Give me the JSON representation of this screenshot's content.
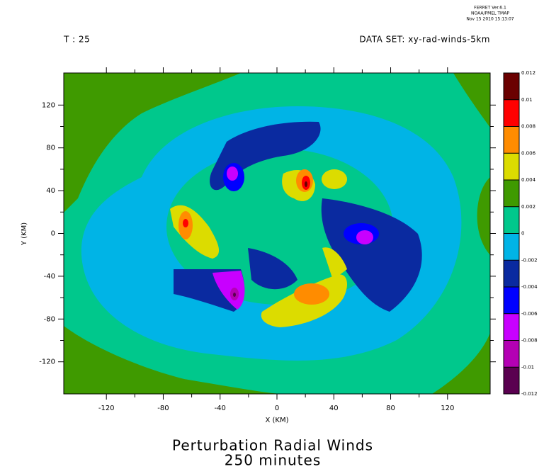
{
  "chart_data": {
    "type": "contour",
    "title": "Perturbation Radial Winds",
    "subtitle": "250 minutes",
    "time_label": "T : 25",
    "dataset_label": "DATA SET: xy-rad-winds-5km",
    "stamp": [
      "FERRET Ver.6.1",
      "NOAA/PMEL TMAP",
      "Nov 15 2010 15:13:07"
    ],
    "x_label": "X (KM)",
    "y_label": "Y (KM)",
    "xlim": [
      -150,
      150
    ],
    "ylim": [
      -150,
      150
    ],
    "xticks": [
      -120,
      -80,
      -40,
      0,
      40,
      80,
      120
    ],
    "yticks": [
      -120,
      -80,
      -40,
      0,
      40,
      80,
      120
    ],
    "levels": [
      -0.012,
      -0.01,
      -0.008,
      -0.006,
      -0.004,
      -0.002,
      0,
      0.002,
      0.004,
      0.006,
      0.008,
      0.01,
      0.012
    ],
    "colors": [
      "#5a0050",
      "#b400b4",
      "#c800ff",
      "#0000ff",
      "#0a2aa0",
      "#00b4e6",
      "#00c88c",
      "#3f9a00",
      "#dcdc00",
      "#ff8c00",
      "#ff0000",
      "#6b0000"
    ]
  }
}
